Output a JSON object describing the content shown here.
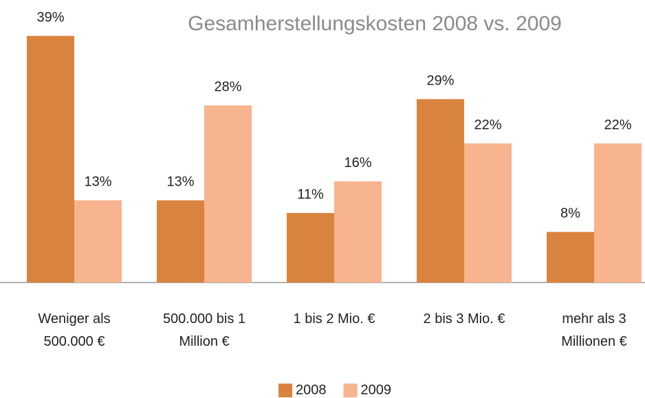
{
  "chart_data": {
    "type": "bar",
    "title": "Gesamherstellungskosten 2008 vs. 2009",
    "categories": [
      "Weniger als 500.000 €",
      "500.000 bis 1 Million €",
      "1 bis 2 Mio. €",
      "2 bis 3 Mio. €",
      "mehr als 3 Millionen €"
    ],
    "series": [
      {
        "name": "2008",
        "color": "#d9843e",
        "values": [
          39,
          13,
          11,
          29,
          8
        ],
        "value_labels": [
          "39%",
          "13%",
          "11%",
          "29%",
          "8%"
        ]
      },
      {
        "name": "2009",
        "color": "#f8b48e",
        "values": [
          13,
          28,
          16,
          22,
          22
        ],
        "value_labels": [
          "13%",
          "28%",
          "16%",
          "22%",
          "22%"
        ]
      }
    ],
    "legend": "bottom"
  }
}
